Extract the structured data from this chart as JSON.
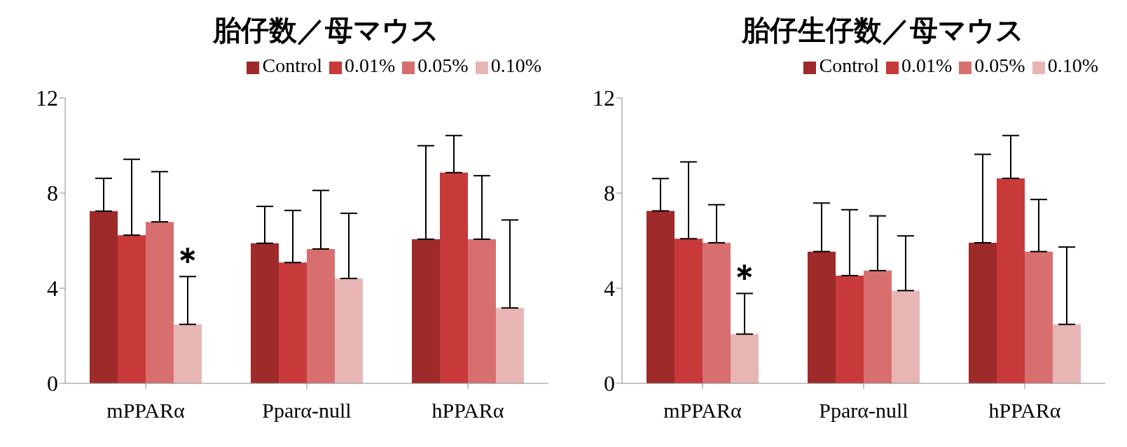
{
  "chart_data": [
    {
      "type": "bar",
      "title": "胎仔数／母マウス",
      "categories": [
        "mPPARα",
        "Pparα-null",
        "hPPARα"
      ],
      "series": [
        {
          "name": "Control",
          "color": "#9e2a2a",
          "values": [
            7.24,
            5.89,
            6.06
          ],
          "errors": [
            [
              7.24,
              8.62
            ],
            [
              5.89,
              7.44
            ],
            [
              6.06,
              9.99
            ]
          ]
        },
        {
          "name": "0.01%",
          "color": "#c8393a",
          "values": [
            6.23,
            5.08,
            8.86
          ],
          "errors": [
            [
              6.23,
              9.42
            ],
            [
              5.08,
              7.27
            ],
            [
              8.86,
              10.42
            ]
          ]
        },
        {
          "name": "0.05%",
          "color": "#d86f6f",
          "values": [
            6.79,
            5.65,
            6.06
          ],
          "errors": [
            [
              6.79,
              8.9
            ],
            [
              5.65,
              8.11
            ],
            [
              6.06,
              8.73
            ]
          ]
        },
        {
          "name": "0.10%",
          "color": "#e8b5b5",
          "values": [
            2.48,
            4.41,
            3.17
          ],
          "errors": [
            [
              2.48,
              4.49
            ],
            [
              4.41,
              7.15
            ],
            [
              3.17,
              6.87
            ]
          ]
        }
      ],
      "ylim": [
        0,
        12
      ],
      "yticks": [
        0,
        4,
        8,
        12
      ],
      "grid": false,
      "legend": "top right",
      "annotations": [
        {
          "text": "＊",
          "x": "mPPARα",
          "y": 5.2
        }
      ]
    },
    {
      "type": "bar",
      "title": "胎仔生仔数／母マウス",
      "categories": [
        "mPPARα",
        "Pparα-null",
        "hPPARα"
      ],
      "series": [
        {
          "name": "Control",
          "color": "#9e2a2a",
          "values": [
            7.25,
            5.54,
            5.91
          ],
          "errors": [
            [
              7.25,
              8.61
            ],
            [
              5.54,
              7.58
            ],
            [
              5.91,
              9.63
            ]
          ]
        },
        {
          "name": "0.01%",
          "color": "#c8393a",
          "values": [
            6.08,
            4.53,
            8.62
          ],
          "errors": [
            [
              6.08,
              9.31
            ],
            [
              4.53,
              7.3
            ],
            [
              8.62,
              10.42
            ]
          ]
        },
        {
          "name": "0.05%",
          "color": "#d86f6f",
          "values": [
            5.91,
            4.74,
            5.54
          ],
          "errors": [
            [
              5.91,
              7.51
            ],
            [
              4.74,
              7.04
            ],
            [
              5.54,
              7.73
            ]
          ]
        },
        {
          "name": "0.10%",
          "color": "#e8b5b5",
          "values": [
            2.07,
            3.9,
            2.48
          ],
          "errors": [
            [
              2.07,
              3.78
            ],
            [
              3.9,
              6.2
            ],
            [
              2.48,
              5.73
            ]
          ]
        }
      ],
      "ylim": [
        0,
        12
      ],
      "yticks": [
        0,
        4,
        8,
        12
      ],
      "grid": false,
      "legend": "top right",
      "annotations": [
        {
          "text": "＊",
          "x": "mPPARα",
          "y": 4.5
        }
      ]
    }
  ]
}
